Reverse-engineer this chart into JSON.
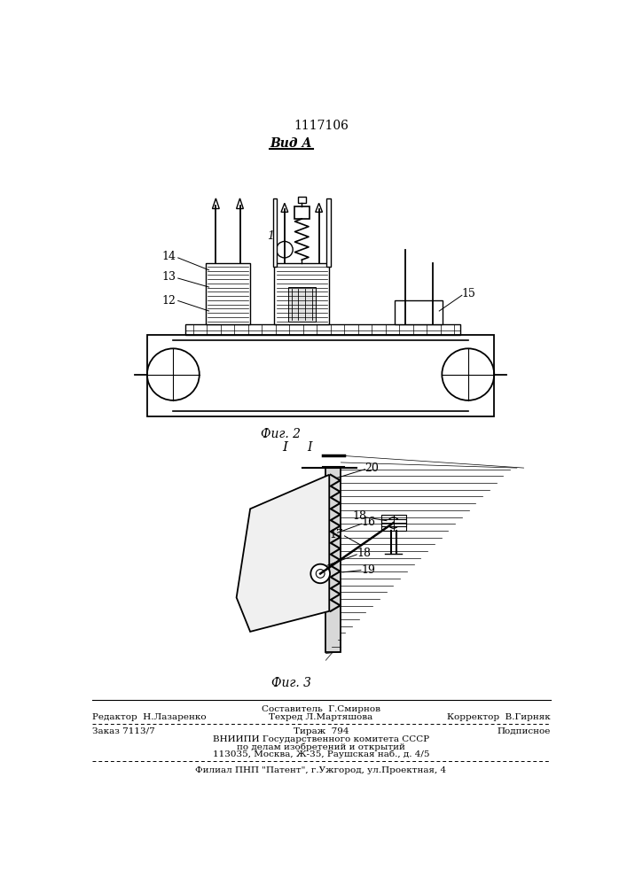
{
  "patent_number": "1117106",
  "view_label": "Вид А",
  "fig2_label": "Фиг. 2",
  "fig3_label": "Фиг. 3",
  "footer_line1": "Составитель  Г.Смирнов",
  "footer_line2_left": "Редактор  Н.Лазаренко",
  "footer_line2_center": "Техред Л.Мартяшова",
  "footer_line2_right": "Корректор  В.Гирняк",
  "footer_line3_left": "Заказ 7113/7",
  "footer_line3_center": "Тираж  794",
  "footer_line3_right": "Подписное",
  "footer_line4": "ВНИИПИ Государственного комитета СССР",
  "footer_line5": "по делам изобретений и открытий",
  "footer_line6": "113035, Москва, Ж-35, Раушская наб., д. 4/5",
  "footer_line7": "Филиал ПНП \"Патент\", г.Ужгород, ул.Проектная, 4",
  "bg_color": "#ffffff",
  "lc": "#000000"
}
